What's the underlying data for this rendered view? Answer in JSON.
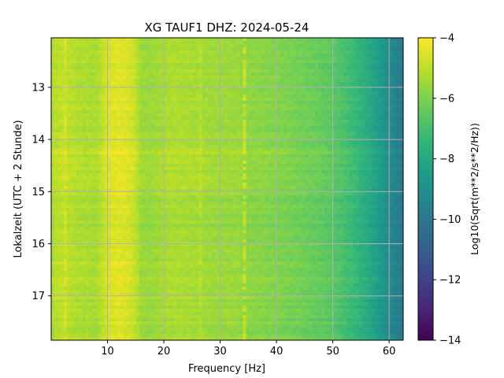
{
  "chart_data": {
    "type": "heatmap",
    "title": "XG TAUF1  DHZ: 2024-05-24",
    "xlabel": "Frequency [Hz]",
    "ylabel": "Lokalzeit (UTC + 2 Stunde)",
    "xlim": [
      0,
      62.5
    ],
    "ylim": [
      17.85,
      12.05
    ],
    "y_inverted": true,
    "xticks": [
      10,
      20,
      30,
      40,
      50,
      60
    ],
    "xtick_labels": [
      "10",
      "20",
      "30",
      "40",
      "50",
      "60"
    ],
    "yticks": [
      13,
      14,
      15,
      16,
      17
    ],
    "ytick_labels": [
      "13",
      "14",
      "15",
      "16",
      "17"
    ],
    "grid": true,
    "colormap": "viridis",
    "colorbar": {
      "label": "Log10(Sqrt(m**2/s**2/Hz))",
      "range": [
        -14,
        -4
      ],
      "ticks": [
        -4,
        -6,
        -8,
        -10,
        -12,
        -14
      ],
      "tick_labels": [
        "−4",
        "−6",
        "−8",
        "−10",
        "−12",
        "−14"
      ]
    },
    "frequency_profile": {
      "x": [
        0,
        2,
        5,
        8,
        10,
        12,
        14,
        15,
        16,
        18,
        20,
        22,
        25,
        28,
        30,
        33,
        35,
        38,
        40,
        42,
        45,
        48,
        50,
        52,
        54,
        56,
        58,
        60,
        62.5
      ],
      "values": [
        -5.3,
        -5.0,
        -5.3,
        -5.4,
        -4.7,
        -4.5,
        -4.7,
        -5.0,
        -5.6,
        -5.6,
        -5.4,
        -5.3,
        -5.4,
        -5.5,
        -5.6,
        -5.6,
        -5.8,
        -5.9,
        -6.0,
        -6.1,
        -6.3,
        -6.5,
        -6.7,
        -7.0,
        -7.4,
        -7.9,
        -8.5,
        -9.3,
        -10.0
      ]
    },
    "time_modulation": {
      "y": [
        12.05,
        12.3,
        12.6,
        12.9,
        13.2,
        13.6,
        14.0,
        14.3,
        14.6,
        15.0,
        15.4,
        15.8,
        16.2,
        16.6,
        17.0,
        17.4,
        17.85
      ],
      "delta": [
        0.0,
        0.1,
        0.0,
        0.15,
        0.1,
        0.05,
        0.2,
        0.25,
        0.2,
        0.1,
        0.0,
        -0.1,
        0.05,
        0.1,
        0.15,
        0.0,
        0.05
      ]
    },
    "features": [
      {
        "kind": "line",
        "x": 34.5,
        "delta": 0.8
      },
      {
        "kind": "line",
        "x": 26.5,
        "delta": 0.3
      },
      {
        "kind": "line",
        "x": 2.5,
        "delta": 0.3
      }
    ]
  }
}
